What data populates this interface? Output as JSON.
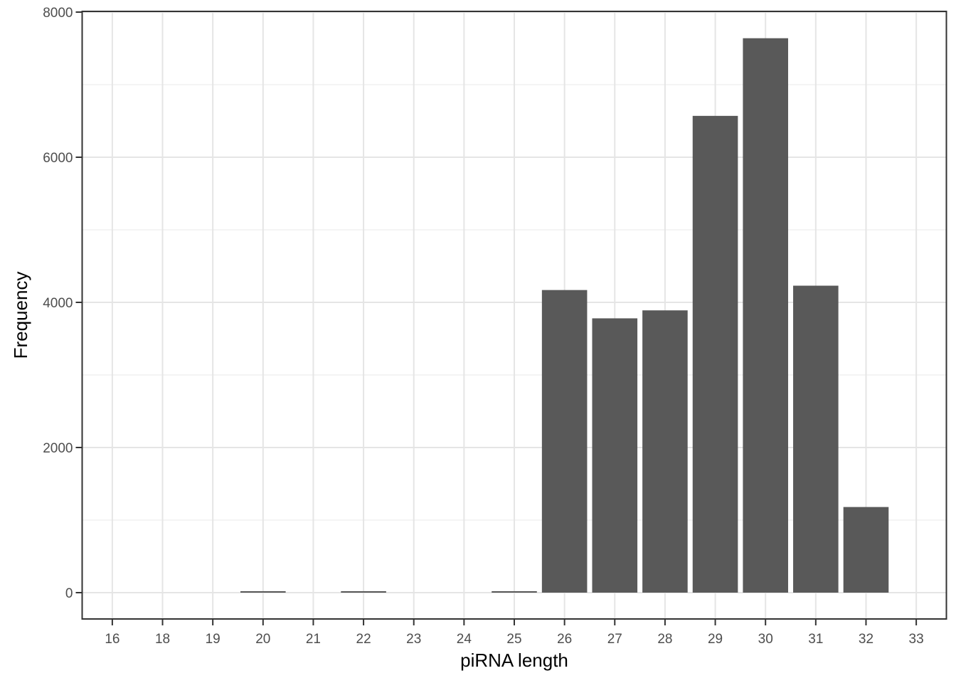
{
  "chart_data": {
    "type": "bar",
    "subtype": "histogram",
    "title": "",
    "xlabel": "piRNA length",
    "ylabel": "Frequency",
    "categories": [
      "16",
      "18",
      "19",
      "20",
      "21",
      "22",
      "23",
      "24",
      "25",
      "26",
      "27",
      "28",
      "29",
      "30",
      "31",
      "32",
      "33"
    ],
    "values": [
      0,
      0,
      0,
      20,
      0,
      20,
      0,
      0,
      20,
      4170,
      3780,
      3890,
      6570,
      7640,
      4230,
      1180,
      0
    ],
    "ylim": [
      0,
      8000
    ],
    "ytick_values": [
      0,
      2000,
      4000,
      6000,
      8000
    ],
    "ytick_labels": [
      "0",
      "2000",
      "4000",
      "6000",
      "8000"
    ],
    "yminor_values": [
      1000,
      3000,
      5000,
      7000
    ],
    "legend_position": "none",
    "grid": "on",
    "colors": {
      "bar_fill": "#595959",
      "panel_border": "#333333",
      "tick_mark": "#333333",
      "grid_major": "#e5e5e5",
      "grid_minor": "#f0f0f0",
      "tick_label": "#4d4d4d",
      "axis_title": "#000000",
      "panel_background": "#ffffff"
    }
  }
}
